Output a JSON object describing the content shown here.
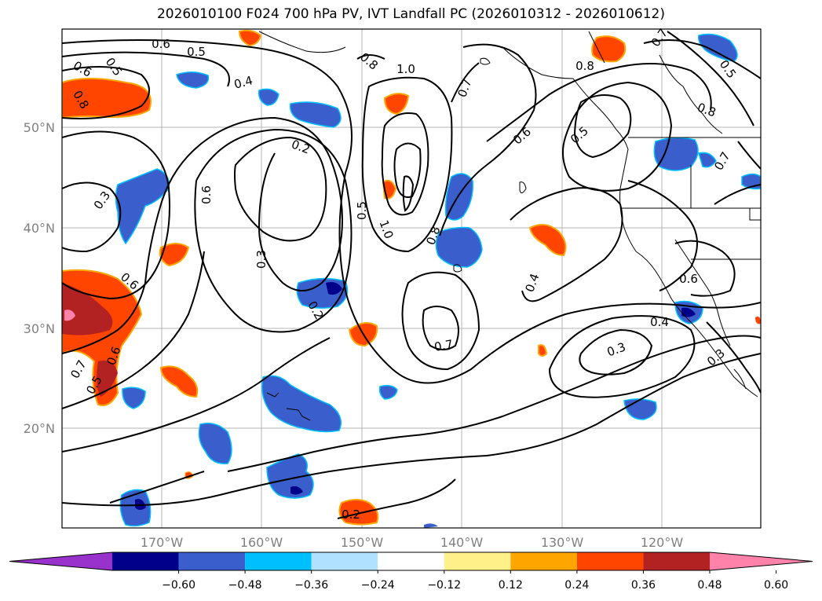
{
  "title": "2026010100 F024 700 hPa PV, IVT Landfall PC (2026010312 - 2026010612)",
  "map": {
    "lat_labels": [
      "50°N",
      "40°N",
      "30°N",
      "20°N"
    ],
    "lon_labels": [
      "170°W",
      "160°W",
      "150°W",
      "140°W",
      "130°W",
      "120°W"
    ],
    "contour_labels": [
      "0.6",
      "0.5",
      "0.4",
      "0.6",
      "0.5",
      "0.8",
      "0.8",
      "1.0",
      "0.7",
      "0.8",
      "0.6",
      "0.5",
      "0.2",
      "0.3",
      "0.6",
      "0.3",
      "0.5",
      "1.0",
      "0.8",
      "0.6",
      "0.2",
      "0.7",
      "0.4",
      "0.3",
      "0.6",
      "0.6",
      "0.7",
      "0.5",
      "0.4",
      "0.3",
      "0.7",
      "0.8",
      "0.5",
      "0.7",
      "0.2"
    ]
  },
  "colorbar": {
    "colors": [
      "#9932cc",
      "#00008b",
      "#3a5fcd",
      "#00bfff",
      "#b0e2ff",
      "#ffffff",
      "#fff08a",
      "#ffa500",
      "#ff4500",
      "#b22222",
      "#ff82ab"
    ],
    "tick_labels": [
      "−0.60",
      "−0.48",
      "−0.36",
      "−0.24",
      "−0.12",
      "0.12",
      "0.24",
      "0.36",
      "0.48",
      "0.60"
    ]
  }
}
